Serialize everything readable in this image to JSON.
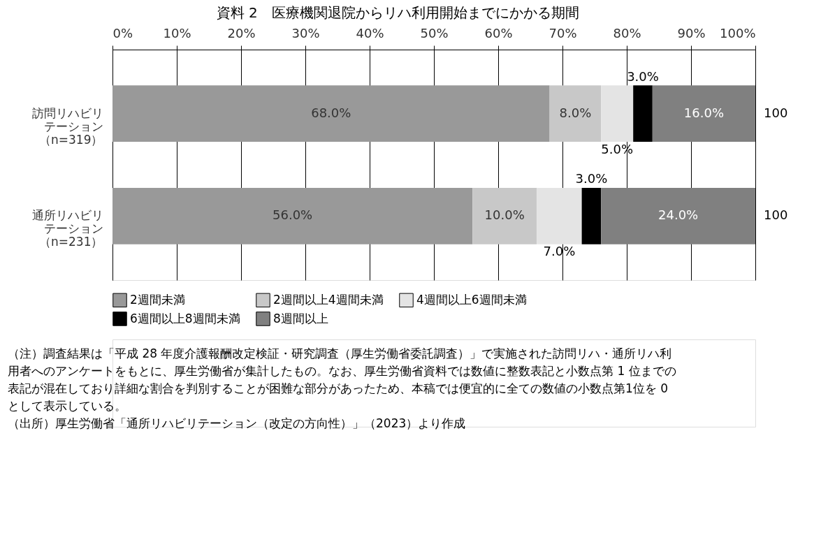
{
  "chart_data": {
    "type": "bar",
    "orientation": "horizontal",
    "stacked": true,
    "title": "資料 2　医療機関退院からリハ利用開始までにかかる期間",
    "categories": [
      "訪問リハビリテーション（n=319）",
      "通所リハビリテーション（n=231）"
    ],
    "series": [
      {
        "name": "2週間未満",
        "color": "#999999",
        "values": [
          68.0,
          56.0
        ],
        "value_labels": [
          "68.0%",
          "56.0%"
        ]
      },
      {
        "name": "2週間以上4週間未満",
        "color": "#c8c8c8",
        "values": [
          8.0,
          10.0
        ],
        "value_labels": [
          "8.0%",
          "10.0%"
        ]
      },
      {
        "name": "4週間以上6週間未満",
        "color": "#e4e4e4",
        "values": [
          5.0,
          7.0
        ],
        "value_labels": [
          "5.0%",
          "7.0%"
        ]
      },
      {
        "name": "6週間以上8週間未満",
        "color": "#000000",
        "values": [
          3.0,
          3.0
        ],
        "value_labels": [
          "3.0%",
          "3.0%"
        ]
      },
      {
        "name": "8週間以上",
        "color": "#808080",
        "values": [
          16.0,
          24.0
        ],
        "value_labels": [
          "16.0%",
          "24.0%"
        ]
      }
    ],
    "xlim": [
      0,
      100
    ],
    "xticks": [
      {
        "value": 0,
        "label": "0%"
      },
      {
        "value": 10,
        "label": "10%"
      },
      {
        "value": 20,
        "label": "20%"
      },
      {
        "value": 30,
        "label": "30%"
      },
      {
        "value": 40,
        "label": "40%"
      },
      {
        "value": 50,
        "label": "50%"
      },
      {
        "value": 60,
        "label": "60%"
      },
      {
        "value": 70,
        "label": "70%"
      },
      {
        "value": 80,
        "label": "80%"
      },
      {
        "value": 90,
        "label": "90%"
      },
      {
        "value": 100,
        "label": "100%"
      }
    ],
    "totals": [
      "100",
      "100"
    ],
    "grid": "x",
    "legend": "bottom",
    "annotations": [
      "（注）調査結果は「平成 28 年度介護報酬改定検証・研究調査（厚生労働省委託調査）」で実施された訪問リハ・通所リハ利用者へのアンケートをもとに、厚生労働省が集計したもの。なお、厚生労働省資料では数値に整数表記と小数点第 1 位までの表記が混在しており詳細な割合を判別することが困難な部分があったため、本稿では便宜的に全ての数値の小数点第1位を 0 として表示している。",
      "（出所）厚生労働省「通所リハビリテーション（改定の方向性）」（2023）より作成"
    ]
  }
}
